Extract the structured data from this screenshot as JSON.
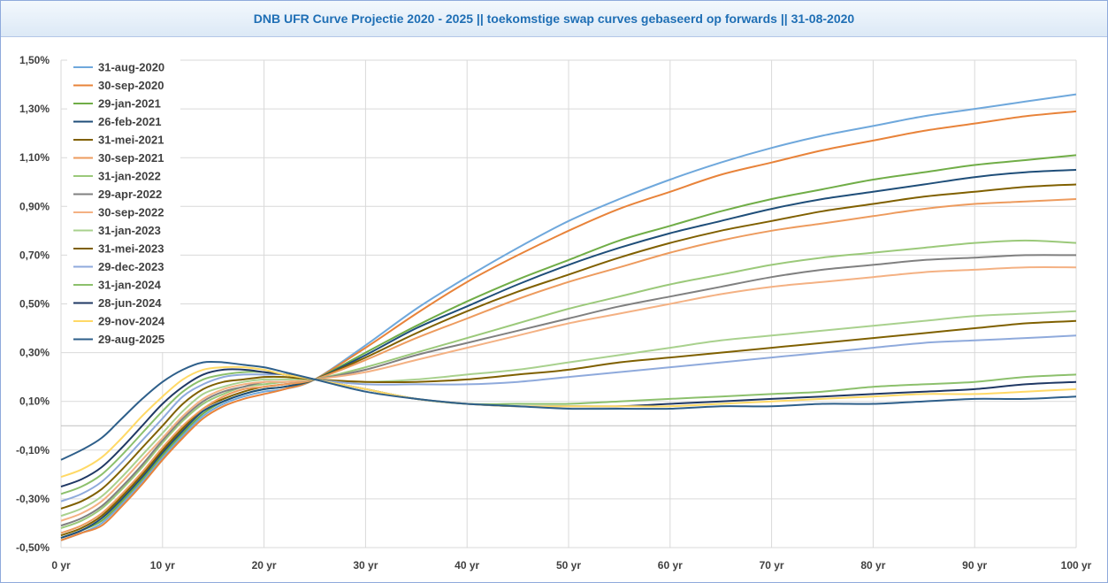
{
  "chart_data": {
    "type": "line",
    "title": "DNB UFR Curve Projectie 2020 - 2025 || toekomstige swap curves gebaseerd op forwards || 31-08-2020",
    "xlabel": "",
    "ylabel": "",
    "x_ticks": [
      "0 yr",
      "10 yr",
      "20 yr",
      "30 yr",
      "40 yr",
      "50 yr",
      "60 yr",
      "70 yr",
      "80 yr",
      "90 yr",
      "100 yr"
    ],
    "y_ticks": [
      "1,50%",
      "1,30%",
      "1,10%",
      "0,90%",
      "0,70%",
      "0,50%",
      "0,30%",
      "0,10%",
      "-0,10%",
      "-0,30%",
      "-0,50%"
    ],
    "xlim": [
      0,
      100
    ],
    "ylim": [
      -0.5,
      1.5
    ],
    "grid": true,
    "legend_position": "top-left",
    "x": [
      0,
      2,
      4,
      6,
      8,
      10,
      12,
      14,
      16,
      18,
      20,
      22,
      25,
      30,
      35,
      40,
      45,
      50,
      55,
      60,
      65,
      70,
      75,
      80,
      85,
      90,
      95,
      100
    ],
    "series": [
      {
        "name": "31-aug-2020",
        "color": "#6fa8dc",
        "values": [
          -0.47,
          -0.44,
          -0.4,
          -0.32,
          -0.23,
          -0.13,
          -0.04,
          0.04,
          0.09,
          0.12,
          0.14,
          0.15,
          0.19,
          0.33,
          0.48,
          0.61,
          0.73,
          0.84,
          0.93,
          1.01,
          1.08,
          1.14,
          1.19,
          1.23,
          1.27,
          1.3,
          1.33,
          1.36
        ]
      },
      {
        "name": "30-sep-2020",
        "color": "#e8833a",
        "values": [
          -0.47,
          -0.44,
          -0.41,
          -0.33,
          -0.24,
          -0.14,
          -0.05,
          0.03,
          0.08,
          0.11,
          0.13,
          0.15,
          0.19,
          0.32,
          0.46,
          0.59,
          0.7,
          0.8,
          0.89,
          0.96,
          1.03,
          1.08,
          1.13,
          1.17,
          1.21,
          1.24,
          1.27,
          1.29
        ]
      },
      {
        "name": "29-jan-2021",
        "color": "#70ad47",
        "values": [
          -0.46,
          -0.43,
          -0.39,
          -0.31,
          -0.22,
          -0.12,
          -0.03,
          0.05,
          0.1,
          0.13,
          0.15,
          0.16,
          0.19,
          0.3,
          0.41,
          0.51,
          0.6,
          0.68,
          0.76,
          0.82,
          0.88,
          0.93,
          0.97,
          1.01,
          1.04,
          1.07,
          1.09,
          1.11
        ]
      },
      {
        "name": "26-feb-2021",
        "color": "#1f4e79",
        "values": [
          -0.46,
          -0.43,
          -0.38,
          -0.3,
          -0.21,
          -0.11,
          -0.02,
          0.06,
          0.1,
          0.13,
          0.15,
          0.16,
          0.19,
          0.29,
          0.4,
          0.49,
          0.58,
          0.66,
          0.73,
          0.79,
          0.84,
          0.89,
          0.93,
          0.96,
          0.99,
          1.02,
          1.04,
          1.05
        ]
      },
      {
        "name": "31-mei-2021",
        "color": "#806000",
        "values": [
          -0.45,
          -0.42,
          -0.37,
          -0.29,
          -0.2,
          -0.1,
          -0.01,
          0.07,
          0.11,
          0.14,
          0.16,
          0.17,
          0.19,
          0.28,
          0.38,
          0.47,
          0.55,
          0.62,
          0.69,
          0.75,
          0.8,
          0.84,
          0.88,
          0.91,
          0.94,
          0.96,
          0.98,
          0.99
        ]
      },
      {
        "name": "30-sep-2021",
        "color": "#ed9b5e",
        "values": [
          -0.44,
          -0.41,
          -0.36,
          -0.28,
          -0.19,
          -0.09,
          0.0,
          0.07,
          0.12,
          0.15,
          0.16,
          0.17,
          0.19,
          0.27,
          0.36,
          0.44,
          0.52,
          0.59,
          0.65,
          0.71,
          0.76,
          0.8,
          0.83,
          0.86,
          0.89,
          0.91,
          0.92,
          0.93
        ]
      },
      {
        "name": "31-jan-2022",
        "color": "#9bc97a",
        "values": [
          -0.42,
          -0.39,
          -0.34,
          -0.26,
          -0.17,
          -0.07,
          0.02,
          0.09,
          0.13,
          0.16,
          0.17,
          0.18,
          0.19,
          0.24,
          0.3,
          0.36,
          0.42,
          0.48,
          0.53,
          0.58,
          0.62,
          0.66,
          0.69,
          0.71,
          0.73,
          0.75,
          0.76,
          0.75
        ]
      },
      {
        "name": "29-apr-2022",
        "color": "#808080",
        "values": [
          -0.41,
          -0.38,
          -0.33,
          -0.25,
          -0.16,
          -0.06,
          0.03,
          0.1,
          0.14,
          0.16,
          0.18,
          0.18,
          0.19,
          0.23,
          0.29,
          0.34,
          0.39,
          0.44,
          0.49,
          0.53,
          0.57,
          0.61,
          0.64,
          0.66,
          0.68,
          0.69,
          0.7,
          0.7
        ]
      },
      {
        "name": "30-sep-2022",
        "color": "#f4b183",
        "values": [
          -0.39,
          -0.36,
          -0.31,
          -0.23,
          -0.14,
          -0.05,
          0.04,
          0.11,
          0.15,
          0.17,
          0.18,
          0.18,
          0.19,
          0.22,
          0.27,
          0.32,
          0.37,
          0.42,
          0.46,
          0.5,
          0.54,
          0.57,
          0.59,
          0.61,
          0.63,
          0.64,
          0.65,
          0.65
        ]
      },
      {
        "name": "31-jan-2023",
        "color": "#a9d18e",
        "values": [
          -0.37,
          -0.34,
          -0.29,
          -0.21,
          -0.12,
          -0.03,
          0.06,
          0.13,
          0.16,
          0.18,
          0.19,
          0.19,
          0.19,
          0.18,
          0.19,
          0.21,
          0.23,
          0.26,
          0.29,
          0.32,
          0.35,
          0.37,
          0.39,
          0.41,
          0.43,
          0.45,
          0.46,
          0.47
        ]
      },
      {
        "name": "31-mei-2023",
        "color": "#7f6000",
        "values": [
          -0.34,
          -0.31,
          -0.26,
          -0.18,
          -0.09,
          0.0,
          0.09,
          0.15,
          0.18,
          0.19,
          0.2,
          0.2,
          0.19,
          0.18,
          0.18,
          0.19,
          0.21,
          0.23,
          0.26,
          0.28,
          0.3,
          0.32,
          0.34,
          0.36,
          0.38,
          0.4,
          0.42,
          0.43
        ]
      },
      {
        "name": "29-dec-2023",
        "color": "#8faadc",
        "values": [
          -0.31,
          -0.28,
          -0.23,
          -0.15,
          -0.06,
          0.03,
          0.12,
          0.17,
          0.2,
          0.21,
          0.21,
          0.21,
          0.19,
          0.17,
          0.17,
          0.17,
          0.18,
          0.2,
          0.22,
          0.24,
          0.26,
          0.28,
          0.3,
          0.32,
          0.34,
          0.35,
          0.36,
          0.37
        ]
      },
      {
        "name": "31-jan-2024",
        "color": "#8cc06c",
        "values": [
          -0.28,
          -0.25,
          -0.2,
          -0.12,
          -0.03,
          0.06,
          0.14,
          0.19,
          0.21,
          0.22,
          0.22,
          0.21,
          0.19,
          0.15,
          0.11,
          0.09,
          0.09,
          0.09,
          0.1,
          0.11,
          0.12,
          0.13,
          0.14,
          0.16,
          0.17,
          0.18,
          0.2,
          0.21
        ]
      },
      {
        "name": "28-jun-2024",
        "color": "#203864",
        "values": [
          -0.25,
          -0.22,
          -0.17,
          -0.09,
          0.0,
          0.09,
          0.16,
          0.21,
          0.23,
          0.23,
          0.22,
          0.21,
          0.19,
          0.15,
          0.11,
          0.09,
          0.08,
          0.08,
          0.08,
          0.09,
          0.1,
          0.11,
          0.12,
          0.13,
          0.14,
          0.15,
          0.17,
          0.18
        ]
      },
      {
        "name": "29-nov-2024",
        "color": "#ffd966",
        "values": [
          -0.21,
          -0.18,
          -0.13,
          -0.05,
          0.04,
          0.12,
          0.19,
          0.23,
          0.24,
          0.24,
          0.23,
          0.21,
          0.19,
          0.15,
          0.11,
          0.09,
          0.08,
          0.08,
          0.08,
          0.08,
          0.09,
          0.1,
          0.11,
          0.12,
          0.13,
          0.13,
          0.14,
          0.15
        ]
      },
      {
        "name": "29-aug-2025",
        "color": "#2e5f8a",
        "values": [
          -0.14,
          -0.1,
          -0.05,
          0.03,
          0.11,
          0.18,
          0.23,
          0.26,
          0.26,
          0.25,
          0.24,
          0.22,
          0.19,
          0.14,
          0.11,
          0.09,
          0.08,
          0.07,
          0.07,
          0.07,
          0.08,
          0.08,
          0.09,
          0.09,
          0.1,
          0.11,
          0.11,
          0.12
        ]
      }
    ]
  }
}
